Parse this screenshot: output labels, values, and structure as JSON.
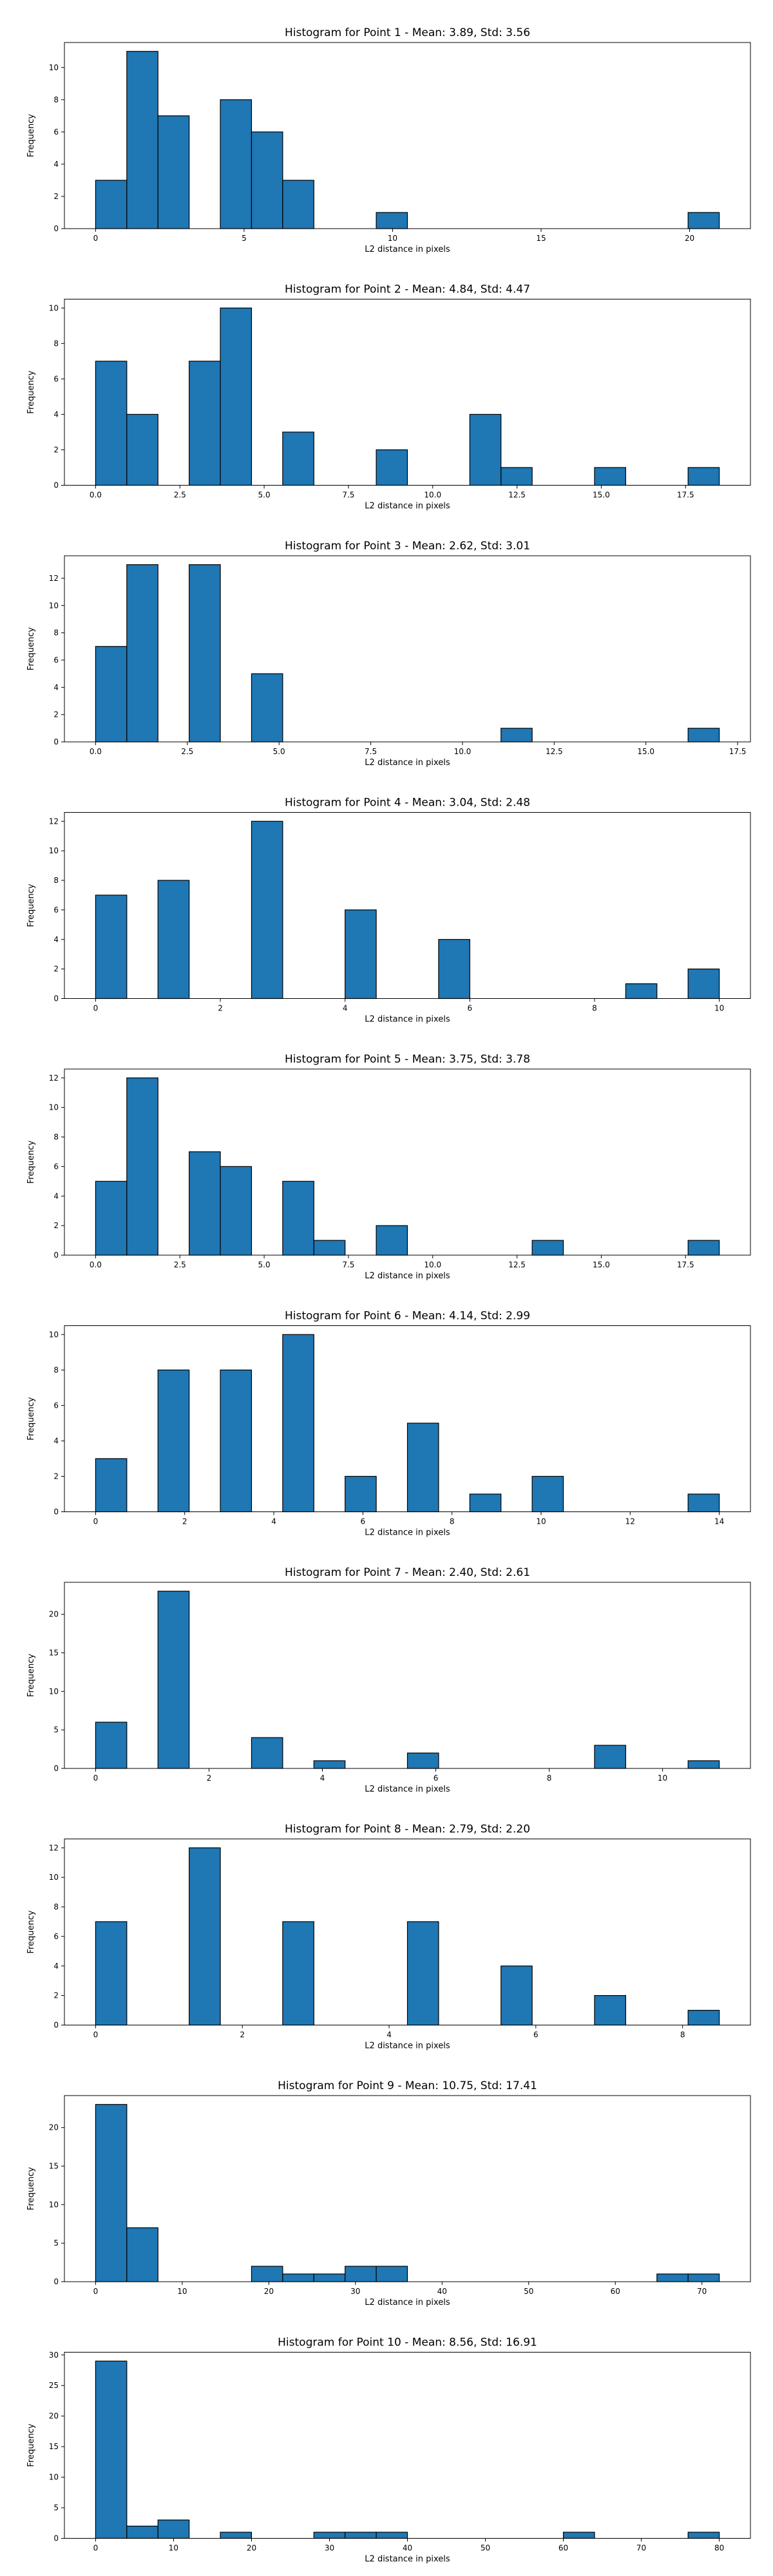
{
  "chart_data": [
    {
      "type": "bar",
      "title": "Histogram for Point 1 - Mean: 3.89, Std: 3.56",
      "xlabel": "L2 distance in pixels",
      "ylabel": "Frequency",
      "bin_edges": [
        0,
        1.05,
        2.1,
        3.15,
        4.2,
        5.25,
        6.3,
        7.35,
        8.4,
        9.45,
        10.5,
        11.55,
        12.6,
        13.65,
        14.7,
        15.75,
        16.8,
        17.85,
        18.9,
        19.95,
        21.0
      ],
      "counts": [
        3,
        11,
        7,
        0,
        8,
        6,
        3,
        0,
        0,
        1,
        0,
        0,
        0,
        0,
        0,
        0,
        0,
        0,
        0,
        1
      ],
      "xlim": [
        -1.05,
        22.05
      ],
      "ylim": [
        0,
        11.55
      ],
      "xticks": [
        0,
        5,
        10,
        15,
        20
      ],
      "xtick_labels": [
        "0",
        "5",
        "10",
        "15",
        "20"
      ],
      "yticks": [
        0,
        2,
        4,
        6,
        8,
        10
      ],
      "ytick_labels": [
        "0",
        "2",
        "4",
        "6",
        "8",
        "10"
      ],
      "bar_color": "#1f77b4"
    },
    {
      "type": "bar",
      "title": "Histogram for Point 2 - Mean: 4.84, Std: 4.47",
      "xlabel": "L2 distance in pixels",
      "ylabel": "Frequency",
      "bin_edges": [
        0,
        0.925,
        1.85,
        2.775,
        3.7,
        4.625,
        5.55,
        6.475,
        7.4,
        8.325,
        9.25,
        10.175,
        11.1,
        12.025,
        12.95,
        13.875,
        14.8,
        15.725,
        16.65,
        17.575,
        18.5
      ],
      "counts": [
        7,
        4,
        0,
        7,
        10,
        0,
        3,
        0,
        0,
        2,
        0,
        0,
        4,
        1,
        0,
        0,
        1,
        0,
        0,
        1
      ],
      "xlim": [
        -0.925,
        19.425
      ],
      "ylim": [
        0,
        10.5
      ],
      "xticks": [
        0,
        2.5,
        5,
        7.5,
        10,
        12.5,
        15,
        17.5
      ],
      "xtick_labels": [
        "0.0",
        "2.5",
        "5.0",
        "7.5",
        "10.0",
        "12.5",
        "15.0",
        "17.5"
      ],
      "yticks": [
        0,
        2,
        4,
        6,
        8,
        10
      ],
      "ytick_labels": [
        "0",
        "2",
        "4",
        "6",
        "8",
        "10"
      ],
      "bar_color": "#1f77b4"
    },
    {
      "type": "bar",
      "title": "Histogram for Point 3 - Mean: 2.62, Std: 3.01",
      "xlabel": "L2 distance in pixels",
      "ylabel": "Frequency",
      "bin_edges": [
        0,
        0.85,
        1.7,
        2.55,
        3.4,
        4.25,
        5.1,
        5.95,
        6.8,
        7.65,
        8.5,
        9.35,
        10.2,
        11.05,
        11.9,
        12.75,
        13.6,
        14.45,
        15.3,
        16.15,
        17.0
      ],
      "counts": [
        7,
        13,
        0,
        13,
        0,
        5,
        0,
        0,
        0,
        0,
        0,
        0,
        0,
        1,
        0,
        0,
        0,
        0,
        0,
        1
      ],
      "xlim": [
        -0.85,
        17.85
      ],
      "ylim": [
        0,
        13.65
      ],
      "xticks": [
        0,
        2.5,
        5,
        7.5,
        10,
        12.5,
        15,
        17.5
      ],
      "xtick_labels": [
        "0.0",
        "2.5",
        "5.0",
        "7.5",
        "10.0",
        "12.5",
        "15.0",
        "17.5"
      ],
      "yticks": [
        0,
        2,
        4,
        6,
        8,
        10,
        12
      ],
      "ytick_labels": [
        "0",
        "2",
        "4",
        "6",
        "8",
        "10",
        "12"
      ],
      "bar_color": "#1f77b4"
    },
    {
      "type": "bar",
      "title": "Histogram for Point 4 - Mean: 3.04, Std: 2.48",
      "xlabel": "L2 distance in pixels",
      "ylabel": "Frequency",
      "bin_edges": [
        0,
        0.5,
        1.0,
        1.5,
        2.0,
        2.5,
        3.0,
        3.5,
        4.0,
        4.5,
        5.0,
        5.5,
        6.0,
        6.5,
        7.0,
        7.5,
        8.0,
        8.5,
        9.0,
        9.5,
        10.0
      ],
      "counts": [
        7,
        0,
        8,
        0,
        0,
        12,
        0,
        0,
        6,
        0,
        0,
        4,
        0,
        0,
        0,
        0,
        0,
        1,
        0,
        2
      ],
      "xlim": [
        -0.5,
        10.5
      ],
      "ylim": [
        0,
        12.6
      ],
      "xticks": [
        0,
        2,
        4,
        6,
        8,
        10
      ],
      "xtick_labels": [
        "0",
        "2",
        "4",
        "6",
        "8",
        "10"
      ],
      "yticks": [
        0,
        2,
        4,
        6,
        8,
        10,
        12
      ],
      "ytick_labels": [
        "0",
        "2",
        "4",
        "6",
        "8",
        "10",
        "12"
      ],
      "bar_color": "#1f77b4"
    },
    {
      "type": "bar",
      "title": "Histogram for Point 5 - Mean: 3.75, Std: 3.78",
      "xlabel": "L2 distance in pixels",
      "ylabel": "Frequency",
      "bin_edges": [
        0,
        0.925,
        1.85,
        2.775,
        3.7,
        4.625,
        5.55,
        6.475,
        7.4,
        8.325,
        9.25,
        10.175,
        11.1,
        12.025,
        12.95,
        13.875,
        14.8,
        15.725,
        16.65,
        17.575,
        18.5
      ],
      "counts": [
        5,
        12,
        0,
        7,
        6,
        0,
        5,
        1,
        0,
        2,
        0,
        0,
        0,
        0,
        1,
        0,
        0,
        0,
        0,
        1
      ],
      "xlim": [
        -0.925,
        19.425
      ],
      "ylim": [
        0,
        12.6
      ],
      "xticks": [
        0,
        2.5,
        5,
        7.5,
        10,
        12.5,
        15,
        17.5
      ],
      "xtick_labels": [
        "0.0",
        "2.5",
        "5.0",
        "7.5",
        "10.0",
        "12.5",
        "15.0",
        "17.5"
      ],
      "yticks": [
        0,
        2,
        4,
        6,
        8,
        10,
        12
      ],
      "ytick_labels": [
        "0",
        "2",
        "4",
        "6",
        "8",
        "10",
        "12"
      ],
      "bar_color": "#1f77b4"
    },
    {
      "type": "bar",
      "title": "Histogram for Point 6 - Mean: 4.14, Std: 2.99",
      "xlabel": "L2 distance in pixels",
      "ylabel": "Frequency",
      "bin_edges": [
        0,
        0.7,
        1.4,
        2.1,
        2.8,
        3.5,
        4.2,
        4.9,
        5.6,
        6.3,
        7.0,
        7.7,
        8.4,
        9.1,
        9.8,
        10.5,
        11.2,
        11.9,
        12.6,
        13.3,
        14.0
      ],
      "counts": [
        3,
        0,
        8,
        0,
        8,
        0,
        10,
        0,
        2,
        0,
        5,
        0,
        1,
        0,
        2,
        0,
        0,
        0,
        0,
        1
      ],
      "xlim": [
        -0.7,
        14.7
      ],
      "ylim": [
        0,
        10.5
      ],
      "xticks": [
        0,
        2,
        4,
        6,
        8,
        10,
        12,
        14
      ],
      "xtick_labels": [
        "0",
        "2",
        "4",
        "6",
        "8",
        "10",
        "12",
        "14"
      ],
      "yticks": [
        0,
        2,
        4,
        6,
        8,
        10
      ],
      "ytick_labels": [
        "0",
        "2",
        "4",
        "6",
        "8",
        "10"
      ],
      "bar_color": "#1f77b4"
    },
    {
      "type": "bar",
      "title": "Histogram for Point 7 - Mean: 2.40, Std: 2.61",
      "xlabel": "L2 distance in pixels",
      "ylabel": "Frequency",
      "bin_edges": [
        0,
        0.55,
        1.1,
        1.65,
        2.2,
        2.75,
        3.3,
        3.85,
        4.4,
        4.95,
        5.5,
        6.05,
        6.6,
        7.15,
        7.7,
        8.25,
        8.8,
        9.35,
        9.9,
        10.45,
        11.0
      ],
      "counts": [
        6,
        0,
        23,
        0,
        0,
        4,
        0,
        1,
        0,
        0,
        2,
        0,
        0,
        0,
        0,
        0,
        3,
        0,
        0,
        1
      ],
      "xlim": [
        -0.55,
        11.55
      ],
      "ylim": [
        0,
        24.15
      ],
      "xticks": [
        0,
        2,
        4,
        6,
        8,
        10
      ],
      "xtick_labels": [
        "0",
        "2",
        "4",
        "6",
        "8",
        "10"
      ],
      "yticks": [
        0,
        5,
        10,
        15,
        20
      ],
      "ytick_labels": [
        "0",
        "5",
        "10",
        "15",
        "20"
      ],
      "bar_color": "#1f77b4"
    },
    {
      "type": "bar",
      "title": "Histogram for Point 8 - Mean: 2.79, Std: 2.20",
      "xlabel": "L2 distance in pixels",
      "ylabel": "Frequency",
      "bin_edges": [
        0,
        0.425,
        0.85,
        1.275,
        1.7,
        2.125,
        2.55,
        2.975,
        3.4,
        3.825,
        4.25,
        4.675,
        5.1,
        5.525,
        5.95,
        6.375,
        6.8,
        7.225,
        7.65,
        8.075,
        8.5
      ],
      "counts": [
        7,
        0,
        0,
        12,
        0,
        0,
        7,
        0,
        0,
        0,
        7,
        0,
        0,
        4,
        0,
        0,
        2,
        0,
        0,
        1
      ],
      "xlim": [
        -0.425,
        8.925
      ],
      "ylim": [
        0,
        12.6
      ],
      "xticks": [
        0,
        2,
        4,
        6,
        8
      ],
      "xtick_labels": [
        "0",
        "2",
        "4",
        "6",
        "8"
      ],
      "yticks": [
        0,
        2,
        4,
        6,
        8,
        10,
        12
      ],
      "ytick_labels": [
        "0",
        "2",
        "4",
        "6",
        "8",
        "10",
        "12"
      ],
      "bar_color": "#1f77b4"
    },
    {
      "type": "bar",
      "title": "Histogram for Point 9 - Mean: 10.75, Std: 17.41",
      "xlabel": "L2 distance in pixels",
      "ylabel": "Frequency",
      "bin_edges": [
        0,
        3.6,
        7.2,
        10.8,
        14.4,
        18.0,
        21.6,
        25.2,
        28.8,
        32.4,
        36.0,
        39.6,
        43.2,
        46.8,
        50.4,
        54.0,
        57.6,
        61.2,
        64.8,
        68.4,
        72.0
      ],
      "counts": [
        23,
        7,
        0,
        0,
        0,
        2,
        1,
        1,
        2,
        2,
        0,
        0,
        0,
        0,
        0,
        0,
        0,
        0,
        1,
        1
      ],
      "xlim": [
        -3.6,
        75.6
      ],
      "ylim": [
        0,
        24.15
      ],
      "xticks": [
        0,
        10,
        20,
        30,
        40,
        50,
        60,
        70
      ],
      "xtick_labels": [
        "0",
        "10",
        "20",
        "30",
        "40",
        "50",
        "60",
        "70"
      ],
      "yticks": [
        0,
        5,
        10,
        15,
        20
      ],
      "ytick_labels": [
        "0",
        "5",
        "10",
        "15",
        "20"
      ],
      "bar_color": "#1f77b4"
    },
    {
      "type": "bar",
      "title": "Histogram for Point 10 - Mean: 8.56, Std: 16.91",
      "xlabel": "L2 distance in pixels",
      "ylabel": "Frequency",
      "bin_edges": [
        0,
        4.0,
        8.0,
        12.0,
        16.0,
        20.0,
        24.0,
        28.0,
        32.0,
        36.0,
        40.0,
        44.0,
        48.0,
        52.0,
        56.0,
        60.0,
        64.0,
        68.0,
        72.0,
        76.0,
        80.0
      ],
      "counts": [
        29,
        2,
        3,
        0,
        1,
        0,
        0,
        1,
        1,
        1,
        0,
        0,
        0,
        0,
        0,
        1,
        0,
        0,
        0,
        1
      ],
      "xlim": [
        -4.0,
        84.0
      ],
      "ylim": [
        0,
        30.45
      ],
      "xticks": [
        0,
        10,
        20,
        30,
        40,
        50,
        60,
        70,
        80
      ],
      "xtick_labels": [
        "0",
        "10",
        "20",
        "30",
        "40",
        "50",
        "60",
        "70",
        "80"
      ],
      "yticks": [
        0,
        5,
        10,
        15,
        20,
        25,
        30
      ],
      "ytick_labels": [
        "0",
        "5",
        "10",
        "15",
        "20",
        "25",
        "30"
      ],
      "bar_color": "#1f77b4"
    }
  ]
}
